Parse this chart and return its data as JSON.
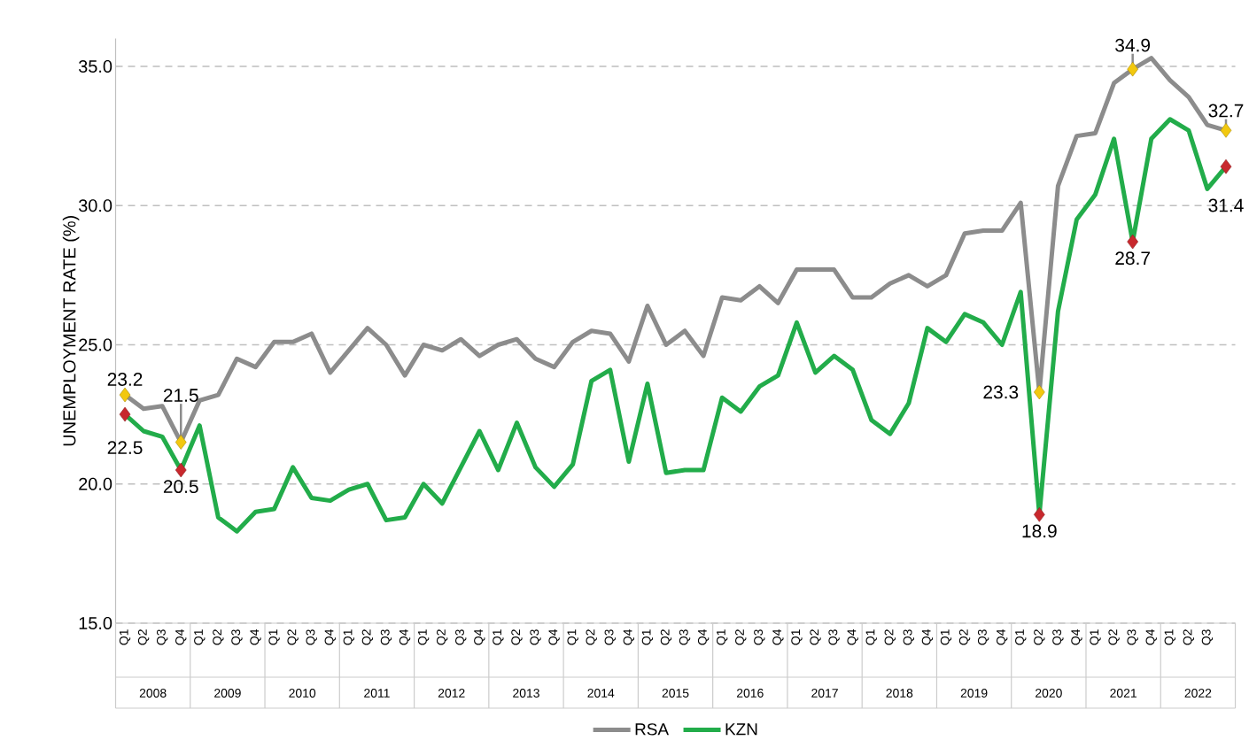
{
  "chart_data": {
    "type": "line",
    "ylabel": "UNEMPLOYMENT RATE (%)",
    "categories": [
      "Q1",
      "Q2",
      "Q3",
      "Q4",
      "Q1",
      "Q2",
      "Q3",
      "Q4",
      "Q1",
      "Q2",
      "Q3",
      "Q4",
      "Q1",
      "Q2",
      "Q3",
      "Q4",
      "Q1",
      "Q2",
      "Q3",
      "Q4",
      "Q1",
      "Q2",
      "Q3",
      "Q4",
      "Q1",
      "Q2",
      "Q3",
      "Q4",
      "Q1",
      "Q2",
      "Q3",
      "Q4",
      "Q1",
      "Q2",
      "Q3",
      "Q4",
      "Q1",
      "Q2",
      "Q3",
      "Q4",
      "Q1",
      "Q2",
      "Q3",
      "Q4",
      "Q1",
      "Q2",
      "Q3",
      "Q4",
      "Q1",
      "Q2",
      "Q3",
      "Q4",
      "Q1",
      "Q2",
      "Q3",
      "Q4",
      "Q1",
      "Q2",
      "Q3",
      null
    ],
    "series": [
      {
        "name": "RSA",
        "color": "#8c8c8c",
        "values": [
          23.2,
          22.7,
          22.8,
          21.5,
          23.0,
          23.2,
          24.5,
          24.2,
          25.1,
          25.1,
          25.4,
          24.0,
          24.8,
          25.6,
          25.0,
          23.9,
          25.0,
          24.8,
          25.2,
          24.6,
          25.0,
          25.2,
          24.5,
          24.2,
          25.1,
          25.5,
          25.4,
          24.4,
          26.4,
          25.0,
          25.5,
          24.6,
          26.7,
          26.6,
          27.1,
          26.5,
          27.7,
          27.7,
          27.7,
          26.7,
          26.7,
          27.2,
          27.5,
          27.1,
          27.5,
          29.0,
          29.1,
          29.1,
          30.1,
          23.3,
          30.7,
          32.5,
          32.6,
          34.4,
          34.9,
          35.3,
          34.5,
          33.9,
          32.9,
          32.7
        ],
        "value_labels": [
          "23.2",
          null,
          null,
          "21.5",
          null,
          null,
          null,
          null,
          null,
          null,
          null,
          null,
          null,
          null,
          null,
          null,
          null,
          null,
          null,
          null,
          null,
          null,
          null,
          null,
          null,
          null,
          null,
          null,
          null,
          null,
          null,
          null,
          null,
          null,
          null,
          null,
          null,
          null,
          null,
          null,
          null,
          null,
          null,
          null,
          null,
          null,
          null,
          null,
          null,
          "23.3",
          null,
          null,
          null,
          null,
          "34.9",
          null,
          null,
          null,
          null,
          "32.7"
        ],
        "colors": [
          "#f2c80f",
          null,
          null,
          "#f2c80f",
          null,
          null,
          null,
          null,
          null,
          null,
          null,
          null,
          null,
          null,
          null,
          null,
          null,
          null,
          null,
          null,
          null,
          null,
          null,
          null,
          null,
          null,
          null,
          null,
          null,
          null,
          null,
          null,
          null,
          null,
          null,
          null,
          null,
          null,
          null,
          null,
          null,
          null,
          null,
          null,
          null,
          null,
          null,
          null,
          null,
          "#f2c80f",
          null,
          null,
          null,
          null,
          "#f2c80f",
          null,
          null,
          null,
          null,
          "#f2c80f"
        ]
      },
      {
        "name": "KZN",
        "color": "#22ac4a",
        "values": [
          22.5,
          21.9,
          21.7,
          20.5,
          22.1,
          18.8,
          18.3,
          19.0,
          19.1,
          20.6,
          19.5,
          19.4,
          19.8,
          20.0,
          18.7,
          18.8,
          20.0,
          19.3,
          20.6,
          21.9,
          20.5,
          22.2,
          20.6,
          19.9,
          20.7,
          23.7,
          24.1,
          20.8,
          23.6,
          20.4,
          20.5,
          20.5,
          23.1,
          22.6,
          23.5,
          23.9,
          25.8,
          24.0,
          24.6,
          24.1,
          22.3,
          21.8,
          22.9,
          25.6,
          25.1,
          26.1,
          25.8,
          25.0,
          26.9,
          18.9,
          26.2,
          29.5,
          30.4,
          32.4,
          28.7,
          32.4,
          33.1,
          32.7,
          30.6,
          31.4
        ],
        "value_labels": [
          "22.5",
          null,
          null,
          "20.5",
          null,
          null,
          null,
          null,
          null,
          null,
          null,
          null,
          null,
          null,
          null,
          null,
          null,
          null,
          null,
          null,
          null,
          null,
          null,
          null,
          null,
          null,
          null,
          null,
          null,
          null,
          null,
          null,
          null,
          null,
          null,
          null,
          null,
          null,
          null,
          null,
          null,
          null,
          null,
          null,
          null,
          null,
          null,
          null,
          null,
          "18.9",
          null,
          null,
          null,
          null,
          "28.7",
          null,
          null,
          null,
          null,
          "31.4"
        ],
        "colors": [
          "#c8282d",
          null,
          null,
          "#c8282d",
          null,
          null,
          null,
          null,
          null,
          null,
          null,
          null,
          null,
          null,
          null,
          null,
          null,
          null,
          null,
          null,
          null,
          null,
          null,
          null,
          null,
          null,
          null,
          null,
          null,
          null,
          null,
          null,
          null,
          null,
          null,
          null,
          null,
          null,
          null,
          null,
          null,
          null,
          null,
          null,
          null,
          null,
          null,
          null,
          null,
          "#c8282d",
          null,
          null,
          null,
          null,
          "#c8282d",
          null,
          null,
          null,
          null,
          "#c8282d"
        ]
      }
    ],
    "ylim": [
      15,
      36
    ],
    "yticks": [
      {
        "value": 15,
        "label": "15.0"
      },
      {
        "value": 20,
        "label": "20.0"
      },
      {
        "value": 25,
        "label": "25.0"
      },
      {
        "value": 30,
        "label": "30.0"
      },
      {
        "value": 35,
        "label": "35.0"
      }
    ],
    "grid": "y",
    "line_style": "solid",
    "legend": "bottom",
    "annotations": [
      "2008",
      "2009",
      "2010",
      "2011",
      "2012",
      "2013",
      "2014",
      "2015",
      "2016",
      "2017",
      "2018",
      "2019",
      "2020",
      "2021",
      "2022"
    ]
  }
}
